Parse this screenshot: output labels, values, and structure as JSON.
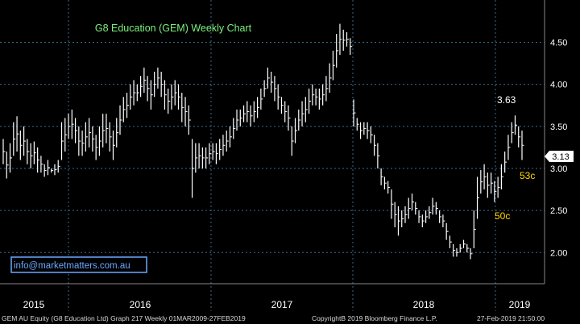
{
  "chart_data": {
    "type": "bar",
    "title": "G8 Education (GEM) Weekly Chart",
    "subtype": "high-low weekly price bars",
    "y_ticks": [
      "4.50",
      "4.00",
      "3.50",
      "3.00",
      "2.50",
      "2.00"
    ],
    "ylim": [
      1.6,
      4.85
    ],
    "x_labels": [
      "2015",
      "2016",
      "2017",
      "2018",
      "2019"
    ],
    "last_price": "3.13",
    "annotations": {
      "peak": "3.63",
      "move_a": "53c",
      "move_b": "50c"
    },
    "grid": true,
    "bar_color": "#ffffff",
    "grid_color": "#3a6a8a",
    "title_color": "#7cf07c",
    "annotation_color": "#ffd700",
    "source_box": "info@marketmatters.com.au",
    "series": [
      {
        "values": [
          [
            3.05,
            3.35
          ],
          [
            2.88,
            3.2
          ],
          [
            2.95,
            3.3
          ],
          [
            3.15,
            3.55
          ],
          [
            3.2,
            3.62
          ],
          [
            3.1,
            3.45
          ],
          [
            3.15,
            3.5
          ],
          [
            3.05,
            3.35
          ],
          [
            3.0,
            3.3
          ],
          [
            3.05,
            3.32
          ],
          [
            2.95,
            3.25
          ],
          [
            2.95,
            3.15
          ],
          [
            2.9,
            3.05
          ],
          [
            2.92,
            3.1
          ],
          [
            2.95,
            3.0
          ],
          [
            2.92,
            3.05
          ],
          [
            2.95,
            3.1
          ],
          [
            3.1,
            3.55
          ],
          [
            3.2,
            3.6
          ],
          [
            3.35,
            3.65
          ],
          [
            3.35,
            3.7
          ],
          [
            3.3,
            3.6
          ],
          [
            3.15,
            3.5
          ],
          [
            3.15,
            3.45
          ],
          [
            3.2,
            3.55
          ],
          [
            3.25,
            3.6
          ],
          [
            3.2,
            3.5
          ],
          [
            3.1,
            3.4
          ],
          [
            3.15,
            3.5
          ],
          [
            3.25,
            3.65
          ],
          [
            3.3,
            3.65
          ],
          [
            3.2,
            3.55
          ],
          [
            3.1,
            3.45
          ],
          [
            3.25,
            3.6
          ],
          [
            3.4,
            3.75
          ],
          [
            3.55,
            3.85
          ],
          [
            3.6,
            3.9
          ],
          [
            3.7,
            4.0
          ],
          [
            3.75,
            4.05
          ],
          [
            3.8,
            4.0
          ],
          [
            3.85,
            4.1
          ],
          [
            3.9,
            4.2
          ],
          [
            3.8,
            4.1
          ],
          [
            3.7,
            4.05
          ],
          [
            3.85,
            4.15
          ],
          [
            3.95,
            4.2
          ],
          [
            3.85,
            4.15
          ],
          [
            3.7,
            4.05
          ],
          [
            3.65,
            3.95
          ],
          [
            3.7,
            4.0
          ],
          [
            3.75,
            4.05
          ],
          [
            3.7,
            4.0
          ],
          [
            3.55,
            3.9
          ],
          [
            3.5,
            3.85
          ],
          [
            3.4,
            3.75
          ],
          [
            2.65,
            3.35
          ],
          [
            2.95,
            3.3
          ],
          [
            3.0,
            3.3
          ],
          [
            3.0,
            3.25
          ],
          [
            3.0,
            3.25
          ],
          [
            3.05,
            3.3
          ],
          [
            3.1,
            3.3
          ],
          [
            3.05,
            3.3
          ],
          [
            3.1,
            3.35
          ],
          [
            3.15,
            3.4
          ],
          [
            3.2,
            3.45
          ],
          [
            3.25,
            3.5
          ],
          [
            3.35,
            3.6
          ],
          [
            3.45,
            3.7
          ],
          [
            3.5,
            3.7
          ],
          [
            3.55,
            3.75
          ],
          [
            3.55,
            3.8
          ],
          [
            3.5,
            3.75
          ],
          [
            3.55,
            3.8
          ],
          [
            3.6,
            3.85
          ],
          [
            3.7,
            3.95
          ],
          [
            3.85,
            4.05
          ],
          [
            3.95,
            4.2
          ],
          [
            3.9,
            4.15
          ],
          [
            3.8,
            4.1
          ],
          [
            3.7,
            4.0
          ],
          [
            3.65,
            3.85
          ],
          [
            3.55,
            3.8
          ],
          [
            3.45,
            3.75
          ],
          [
            3.15,
            3.5
          ],
          [
            3.3,
            3.6
          ],
          [
            3.45,
            3.7
          ],
          [
            3.5,
            3.8
          ],
          [
            3.55,
            3.85
          ],
          [
            3.65,
            3.95
          ],
          [
            3.75,
            4.0
          ],
          [
            3.75,
            3.95
          ],
          [
            3.7,
            3.95
          ],
          [
            3.75,
            4.0
          ],
          [
            3.8,
            4.1
          ],
          [
            3.9,
            4.25
          ],
          [
            4.05,
            4.4
          ],
          [
            4.2,
            4.6
          ],
          [
            4.35,
            4.72
          ],
          [
            4.4,
            4.65
          ],
          [
            4.45,
            4.62
          ],
          [
            4.35,
            4.55
          ],
          [
            3.5,
            3.82
          ],
          [
            3.45,
            3.6
          ],
          [
            3.35,
            3.55
          ],
          [
            3.4,
            3.55
          ],
          [
            3.35,
            3.55
          ],
          [
            3.3,
            3.5
          ],
          [
            3.15,
            3.4
          ],
          [
            3.0,
            3.3
          ],
          [
            2.8,
            3.0
          ],
          [
            2.75,
            2.9
          ],
          [
            2.7,
            2.85
          ],
          [
            2.4,
            2.75
          ],
          [
            2.3,
            2.6
          ],
          [
            2.2,
            2.55
          ],
          [
            2.3,
            2.5
          ],
          [
            2.35,
            2.55
          ],
          [
            2.4,
            2.65
          ],
          [
            2.5,
            2.7
          ],
          [
            2.45,
            2.6
          ],
          [
            2.35,
            2.5
          ],
          [
            2.3,
            2.45
          ],
          [
            2.35,
            2.5
          ],
          [
            2.4,
            2.55
          ],
          [
            2.45,
            2.65
          ],
          [
            2.45,
            2.6
          ],
          [
            2.35,
            2.5
          ],
          [
            2.3,
            2.45
          ],
          [
            2.15,
            2.35
          ],
          [
            2.05,
            2.2
          ],
          [
            1.95,
            2.1
          ],
          [
            1.95,
            2.05
          ],
          [
            2.0,
            2.1
          ],
          [
            2.05,
            2.15
          ],
          [
            2.0,
            2.1
          ],
          [
            1.92,
            2.05
          ],
          [
            2.05,
            2.5
          ],
          [
            2.4,
            2.9
          ],
          [
            2.7,
            2.98
          ],
          [
            2.75,
            3.05
          ],
          [
            2.65,
            2.95
          ],
          [
            2.7,
            2.95
          ],
          [
            2.6,
            2.85
          ],
          [
            2.65,
            2.9
          ],
          [
            2.75,
            3.05
          ],
          [
            2.95,
            3.2
          ],
          [
            3.1,
            3.4
          ],
          [
            3.3,
            3.55
          ],
          [
            3.4,
            3.63
          ],
          [
            3.25,
            3.5
          ],
          [
            3.1,
            3.45
          ]
        ]
      }
    ]
  },
  "footer": {
    "left": "GEM AU Equity (G8 Education Ltd) Graph 217  Weekly 01MAR2009-27FEB2019",
    "center": "CopyrightB 2019 Bloomberg Finance L.P.",
    "right": "27-Feb-2019 21:50:00"
  }
}
